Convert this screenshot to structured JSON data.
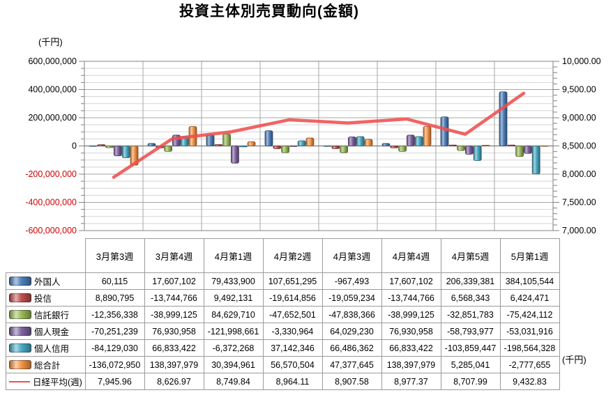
{
  "title": "投資主体別売買動向(金額)",
  "units": {
    "left": "(千円)",
    "right": "(千円)"
  },
  "chart_data": {
    "type": "bar",
    "subtype": "clustered-bar-with-line",
    "title": "投資主体別売買動向(金額)",
    "categories": [
      "3月第3週",
      "3月第4週",
      "4月第1週",
      "4月第2週",
      "4月第3週",
      "4月第4週",
      "4月第5週",
      "5月第1週"
    ],
    "series": [
      {
        "name": "外国人",
        "type": "bar",
        "color": "#4f81bd",
        "values": [
          60115,
          17607102,
          79433900,
          107651295,
          -967493,
          17607102,
          206339381,
          384105544
        ]
      },
      {
        "name": "投信",
        "type": "bar",
        "color": "#c0504d",
        "values": [
          8890795,
          -13744766,
          9492131,
          -19614856,
          -19059234,
          -13744766,
          6568343,
          6424471
        ]
      },
      {
        "name": "信託銀行",
        "type": "bar",
        "color": "#9bbb59",
        "values": [
          -12356338,
          -38999125,
          84629710,
          -47652501,
          -47838366,
          -38999125,
          -32851783,
          -75424112
        ]
      },
      {
        "name": "個人現金",
        "type": "bar",
        "color": "#8064a2",
        "values": [
          -70251239,
          76930958,
          -121998661,
          -3330964,
          64029230,
          76930958,
          -58793977,
          -53031916
        ]
      },
      {
        "name": "個人信用",
        "type": "bar",
        "color": "#4bacc6",
        "values": [
          -84129030,
          66833422,
          -6372268,
          37142346,
          66486362,
          66833422,
          -103859447,
          -198564328
        ]
      },
      {
        "name": "総合計",
        "type": "bar",
        "color": "#f79646",
        "values": [
          -136072950,
          138397979,
          30394961,
          56570504,
          47377645,
          138397979,
          5285041,
          -2777655
        ]
      },
      {
        "name": "日経平均(週)",
        "type": "line",
        "color": "#ef4e4e",
        "values": [
          7945.96,
          8626.97,
          8749.84,
          8964.11,
          8907.58,
          8977.37,
          8707.99,
          9432.83
        ]
      }
    ],
    "left_axis": {
      "unit": "(千円)",
      "min": -600000000,
      "max": 600000000,
      "major": 200000000,
      "minor": 50000000,
      "labels": [
        "600,000,000",
        "400,000,000",
        "200,000,000",
        "0",
        "-200,000,000",
        "-400,000,000",
        "-600,000,000"
      ],
      "negative_label_color": "#cc0000"
    },
    "right_axis": {
      "unit": "(千円)",
      "min": 7000,
      "max": 10000,
      "major": 500,
      "minor": 100,
      "labels": [
        "10,000.00",
        "9,500.00",
        "9,000.00",
        "8,500.00",
        "8,000.00",
        "7,500.00",
        "7,000.00"
      ]
    },
    "grid": {
      "h_minor": true,
      "h_major": true,
      "v_major": true
    },
    "legend_position": "data-table-left"
  },
  "table": {
    "header": [
      "3月第3週",
      "3月第4週",
      "4月第1週",
      "4月第2週",
      "4月第3週",
      "4月第4週",
      "4月第5週",
      "5月第1週"
    ],
    "rows": [
      {
        "label": "外国人",
        "swatch": "bar",
        "color": "#4f81bd",
        "cells": [
          "60,115",
          "17,607,102",
          "79,433,900",
          "107,651,295",
          "-967,493",
          "17,607,102",
          "206,339,381",
          "384,105,544"
        ]
      },
      {
        "label": "投信",
        "swatch": "bar",
        "color": "#c0504d",
        "cells": [
          "8,890,795",
          "-13,744,766",
          "9,492,131",
          "-19,614,856",
          "-19,059,234",
          "-13,744,766",
          "6,568,343",
          "6,424,471"
        ]
      },
      {
        "label": "信託銀行",
        "swatch": "bar",
        "color": "#9bbb59",
        "cells": [
          "-12,356,338",
          "-38,999,125",
          "84,629,710",
          "-47,652,501",
          "-47,838,366",
          "-38,999,125",
          "-32,851,783",
          "-75,424,112"
        ]
      },
      {
        "label": "個人現金",
        "swatch": "bar",
        "color": "#8064a2",
        "cells": [
          "-70,251,239",
          "76,930,958",
          "-121,998,661",
          "-3,330,964",
          "64,029,230",
          "76,930,958",
          "-58,793,977",
          "-53,031,916"
        ]
      },
      {
        "label": "個人信用",
        "swatch": "bar",
        "color": "#4bacc6",
        "cells": [
          "-84,129,030",
          "66,833,422",
          "-6,372,268",
          "37,142,346",
          "66,486,362",
          "66,833,422",
          "-103,859,447",
          "-198,564,328"
        ]
      },
      {
        "label": "総合計",
        "swatch": "bar",
        "color": "#f79646",
        "cells": [
          "-136,072,950",
          "138,397,979",
          "30,394,961",
          "56,570,504",
          "47,377,645",
          "138,397,979",
          "5,285,041",
          "-2,777,655"
        ]
      },
      {
        "label": "日経平均(週)",
        "swatch": "line",
        "color": "#ef4e4e",
        "cells": [
          "7,945.96",
          "8,626.97",
          "8,749.84",
          "8,964.11",
          "8,907.58",
          "8,977.37",
          "8,707.99",
          "9,432.83"
        ]
      }
    ],
    "right_unit": "(千円)"
  }
}
